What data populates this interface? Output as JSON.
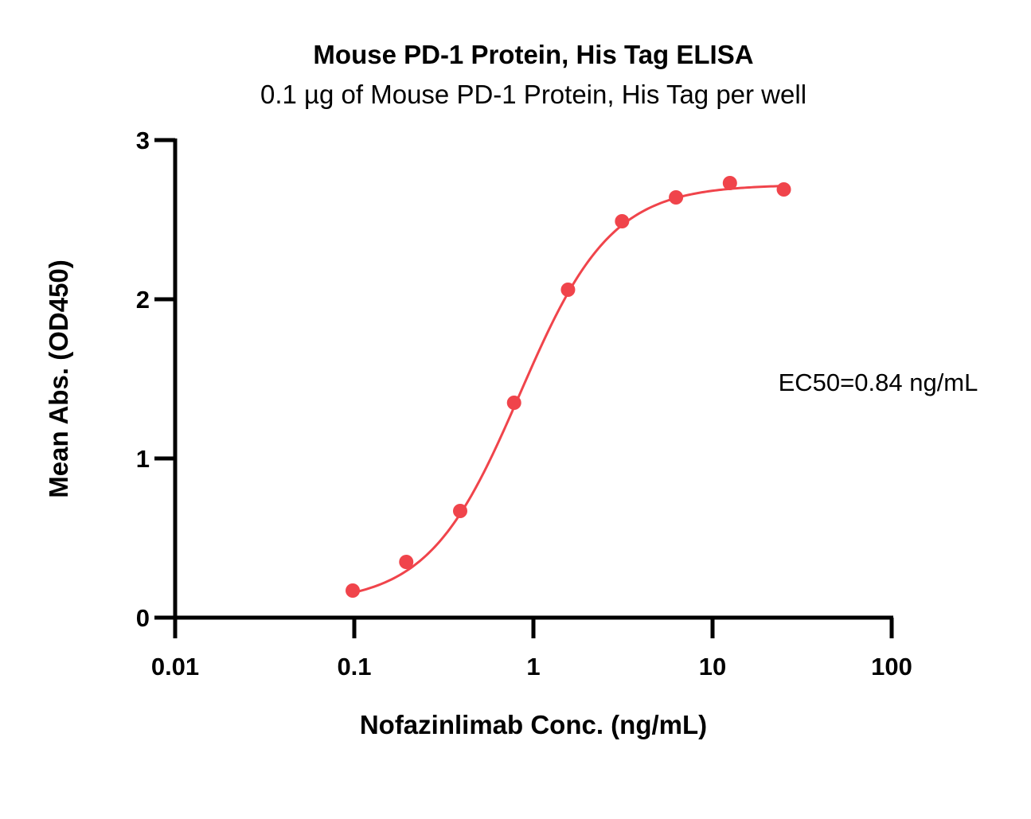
{
  "chart_data": {
    "type": "scatter",
    "title": "Mouse PD-1 Protein, His Tag ELISA",
    "subtitle": "0.1 µg of Mouse PD-1 Protein, His Tag per well",
    "xlabel": "Nofazinlimab Conc. (ng/mL)",
    "ylabel": "Mean Abs. (OD450)",
    "xscale": "log",
    "xlim": [
      0.01,
      100
    ],
    "ylim": [
      0,
      3
    ],
    "xticks": [
      "0.01",
      "0.1",
      "1",
      "10",
      "100"
    ],
    "yticks": [
      "0",
      "1",
      "2",
      "3"
    ],
    "grid": false,
    "legend": "none",
    "series": [
      {
        "color": "#f0444b",
        "x": [
          0.098,
          0.195,
          0.39,
          0.78,
          1.56,
          3.125,
          6.25,
          12.5,
          25
        ],
        "y": [
          0.17,
          0.35,
          0.67,
          1.35,
          2.06,
          2.49,
          2.64,
          2.73,
          2.69
        ],
        "fit": {
          "model": "4PL",
          "bottom": 0.09,
          "top": 2.72,
          "ec50": 0.84,
          "hill": 1.7
        }
      }
    ],
    "annotations": [
      {
        "text": "EC50=0.84 ng/mL",
        "position": "right-middle"
      }
    ]
  }
}
